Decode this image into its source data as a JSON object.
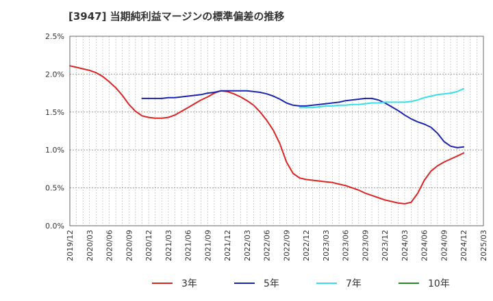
{
  "chart_data": {
    "type": "line",
    "title": "[3947]  当期純利益マージンの標準偏差の推移",
    "x_ticks": [
      "2019/12",
      "2020/03",
      "2020/06",
      "2020/09",
      "2020/12",
      "2021/03",
      "2021/06",
      "2021/09",
      "2021/12",
      "2022/03",
      "2022/06",
      "2022/09",
      "2022/12",
      "2023/03",
      "2023/06",
      "2023/09",
      "2023/12",
      "2024/03",
      "2024/06",
      "2024/09",
      "2024/12",
      "2025/03"
    ],
    "y_ticks": [
      "0.0%",
      "0.5%",
      "1.0%",
      "1.5%",
      "2.0%",
      "2.5%"
    ],
    "ylim": [
      0,
      2.5
    ],
    "xlim": [
      "2019/12",
      "2025/03"
    ],
    "grid": true,
    "legend_position": "bottom",
    "series": [
      {
        "name": "3年",
        "color": "#dd2222",
        "points": [
          [
            "2019/12",
            2.11
          ],
          [
            "2020/01",
            2.09
          ],
          [
            "2020/02",
            2.07
          ],
          [
            "2020/03",
            2.05
          ],
          [
            "2020/04",
            2.02
          ],
          [
            "2020/05",
            1.97
          ],
          [
            "2020/06",
            1.9
          ],
          [
            "2020/07",
            1.82
          ],
          [
            "2020/08",
            1.72
          ],
          [
            "2020/09",
            1.6
          ],
          [
            "2020/10",
            1.51
          ],
          [
            "2020/11",
            1.45
          ],
          [
            "2020/12",
            1.43
          ],
          [
            "2021/01",
            1.42
          ],
          [
            "2021/02",
            1.42
          ],
          [
            "2021/03",
            1.43
          ],
          [
            "2021/04",
            1.46
          ],
          [
            "2021/05",
            1.51
          ],
          [
            "2021/06",
            1.56
          ],
          [
            "2021/07",
            1.61
          ],
          [
            "2021/08",
            1.66
          ],
          [
            "2021/09",
            1.7
          ],
          [
            "2021/10",
            1.75
          ],
          [
            "2021/11",
            1.78
          ],
          [
            "2021/12",
            1.77
          ],
          [
            "2022/01",
            1.74
          ],
          [
            "2022/02",
            1.7
          ],
          [
            "2022/03",
            1.65
          ],
          [
            "2022/04",
            1.59
          ],
          [
            "2022/05",
            1.5
          ],
          [
            "2022/06",
            1.39
          ],
          [
            "2022/07",
            1.26
          ],
          [
            "2022/08",
            1.08
          ],
          [
            "2022/09",
            0.84
          ],
          [
            "2022/10",
            0.69
          ],
          [
            "2022/11",
            0.63
          ],
          [
            "2022/12",
            0.61
          ],
          [
            "2023/01",
            0.6
          ],
          [
            "2023/02",
            0.59
          ],
          [
            "2023/03",
            0.58
          ],
          [
            "2023/04",
            0.57
          ],
          [
            "2023/05",
            0.55
          ],
          [
            "2023/06",
            0.53
          ],
          [
            "2023/07",
            0.5
          ],
          [
            "2023/08",
            0.47
          ],
          [
            "2023/09",
            0.43
          ],
          [
            "2023/10",
            0.4
          ],
          [
            "2023/11",
            0.37
          ],
          [
            "2023/12",
            0.34
          ],
          [
            "2024/01",
            0.32
          ],
          [
            "2024/02",
            0.3
          ],
          [
            "2024/03",
            0.29
          ],
          [
            "2024/04",
            0.31
          ],
          [
            "2024/05",
            0.43
          ],
          [
            "2024/06",
            0.6
          ],
          [
            "2024/07",
            0.72
          ],
          [
            "2024/08",
            0.79
          ],
          [
            "2024/09",
            0.84
          ],
          [
            "2024/10",
            0.88
          ],
          [
            "2024/11",
            0.92
          ],
          [
            "2024/12",
            0.96
          ]
        ]
      },
      {
        "name": "5年",
        "color": "#1a23b0",
        "points": [
          [
            "2020/11",
            1.68
          ],
          [
            "2020/12",
            1.68
          ],
          [
            "2021/01",
            1.68
          ],
          [
            "2021/02",
            1.68
          ],
          [
            "2021/03",
            1.69
          ],
          [
            "2021/04",
            1.69
          ],
          [
            "2021/05",
            1.7
          ],
          [
            "2021/06",
            1.71
          ],
          [
            "2021/07",
            1.72
          ],
          [
            "2021/08",
            1.73
          ],
          [
            "2021/09",
            1.75
          ],
          [
            "2021/10",
            1.76
          ],
          [
            "2021/11",
            1.78
          ],
          [
            "2021/12",
            1.78
          ],
          [
            "2022/01",
            1.78
          ],
          [
            "2022/02",
            1.78
          ],
          [
            "2022/03",
            1.78
          ],
          [
            "2022/04",
            1.77
          ],
          [
            "2022/05",
            1.76
          ],
          [
            "2022/06",
            1.74
          ],
          [
            "2022/07",
            1.71
          ],
          [
            "2022/08",
            1.67
          ],
          [
            "2022/09",
            1.62
          ],
          [
            "2022/10",
            1.59
          ],
          [
            "2022/11",
            1.58
          ],
          [
            "2022/12",
            1.58
          ],
          [
            "2023/01",
            1.59
          ],
          [
            "2023/02",
            1.6
          ],
          [
            "2023/03",
            1.61
          ],
          [
            "2023/04",
            1.62
          ],
          [
            "2023/05",
            1.63
          ],
          [
            "2023/06",
            1.65
          ],
          [
            "2023/07",
            1.66
          ],
          [
            "2023/08",
            1.67
          ],
          [
            "2023/09",
            1.68
          ],
          [
            "2023/10",
            1.68
          ],
          [
            "2023/11",
            1.66
          ],
          [
            "2023/12",
            1.62
          ],
          [
            "2024/01",
            1.57
          ],
          [
            "2024/02",
            1.52
          ],
          [
            "2024/03",
            1.46
          ],
          [
            "2024/04",
            1.41
          ],
          [
            "2024/05",
            1.37
          ],
          [
            "2024/06",
            1.34
          ],
          [
            "2024/07",
            1.3
          ],
          [
            "2024/08",
            1.22
          ],
          [
            "2024/09",
            1.11
          ],
          [
            "2024/10",
            1.05
          ],
          [
            "2024/11",
            1.03
          ],
          [
            "2024/12",
            1.04
          ]
        ]
      },
      {
        "name": "7年",
        "color": "#33e0e8",
        "points": [
          [
            "2022/11",
            1.56
          ],
          [
            "2022/12",
            1.56
          ],
          [
            "2023/01",
            1.56
          ],
          [
            "2023/02",
            1.57
          ],
          [
            "2023/03",
            1.58
          ],
          [
            "2023/04",
            1.58
          ],
          [
            "2023/05",
            1.59
          ],
          [
            "2023/06",
            1.59
          ],
          [
            "2023/07",
            1.6
          ],
          [
            "2023/08",
            1.6
          ],
          [
            "2023/09",
            1.61
          ],
          [
            "2023/10",
            1.62
          ],
          [
            "2023/11",
            1.62
          ],
          [
            "2023/12",
            1.63
          ],
          [
            "2024/01",
            1.63
          ],
          [
            "2024/02",
            1.63
          ],
          [
            "2024/03",
            1.63
          ],
          [
            "2024/04",
            1.64
          ],
          [
            "2024/05",
            1.66
          ],
          [
            "2024/06",
            1.69
          ],
          [
            "2024/07",
            1.71
          ],
          [
            "2024/08",
            1.73
          ],
          [
            "2024/09",
            1.74
          ],
          [
            "2024/10",
            1.75
          ],
          [
            "2024/11",
            1.77
          ],
          [
            "2024/12",
            1.81
          ]
        ]
      },
      {
        "name": "10年",
        "color": "#228822",
        "points": []
      }
    ]
  }
}
